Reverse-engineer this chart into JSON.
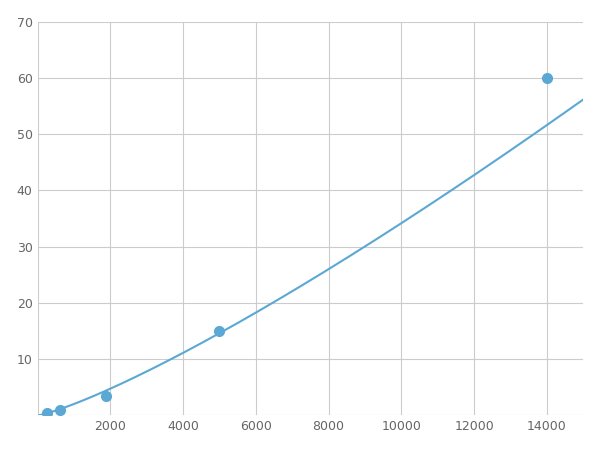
{
  "x_data": [
    250,
    625,
    1875,
    5000,
    14000
  ],
  "y_data": [
    0.5,
    0.9,
    3.5,
    15.0,
    60.0
  ],
  "line_color": "#5ba8d4",
  "marker_color": "#5ba8d4",
  "marker_size": 7,
  "xlim": [
    0,
    15000
  ],
  "ylim": [
    0,
    70
  ],
  "xticks": [
    0,
    2000,
    4000,
    6000,
    8000,
    10000,
    12000,
    14000
  ],
  "yticks": [
    0,
    10,
    20,
    30,
    40,
    50,
    60,
    70
  ],
  "xtick_labels": [
    "",
    "2000",
    "4000",
    "6000",
    "8000",
    "10000",
    "12000",
    "14000"
  ],
  "ytick_labels": [
    "",
    "10",
    "20",
    "30",
    "40",
    "50",
    "60",
    "70"
  ],
  "grid_color": "#cccccc",
  "background_color": "#ffffff",
  "line_width": 1.5,
  "figsize": [
    6.0,
    4.5
  ],
  "dpi": 100
}
